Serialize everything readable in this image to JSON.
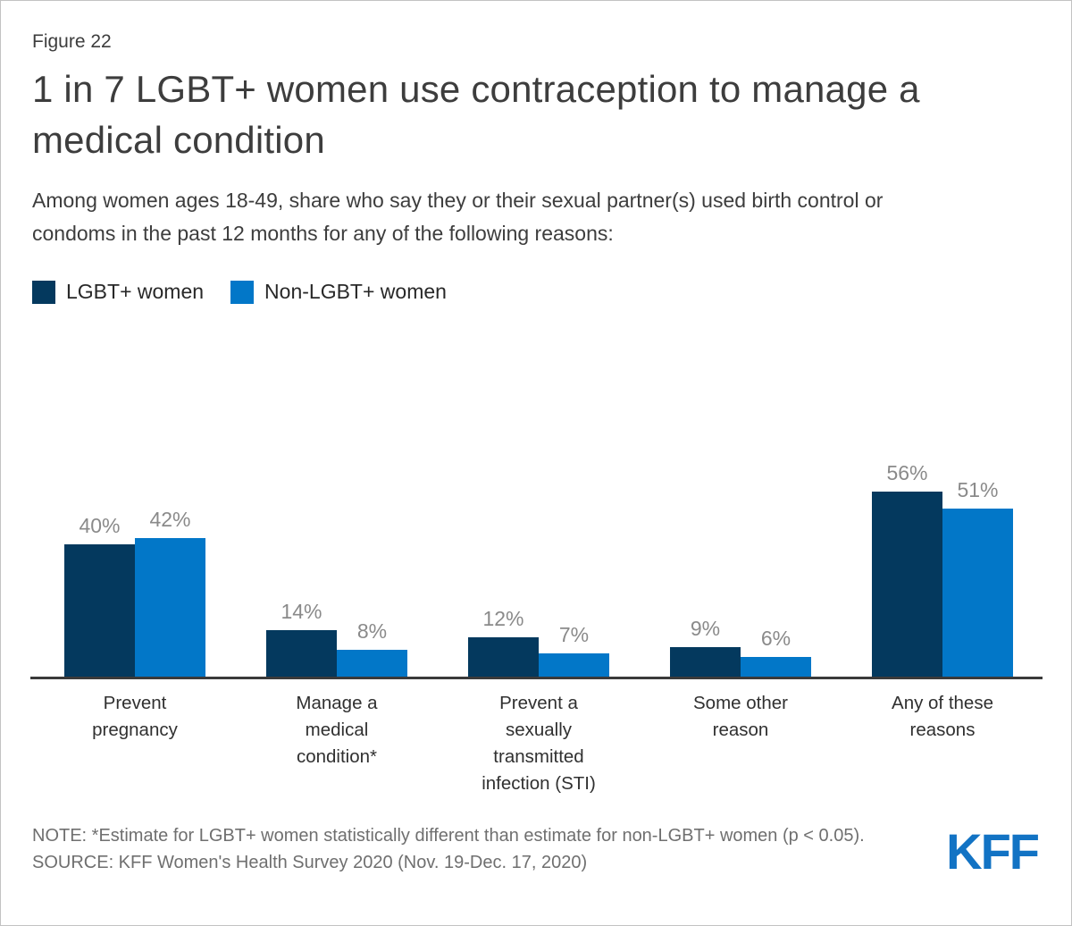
{
  "figure_label": "Figure 22",
  "title": "1 in 7 LGBT+ women use contraception to manage a medical condition",
  "subtitle": "Among women ages 18-49, share who say they or their sexual partner(s) used birth control or condoms in the past 12 months for any of the following reasons:",
  "legend": [
    {
      "label": "LGBT+ women",
      "color": "#04395E"
    },
    {
      "label": "Non-LGBT+ women",
      "color": "#0277C8"
    }
  ],
  "chart_data": {
    "type": "bar",
    "categories": [
      "Prevent pregnancy",
      "Manage a medical condition*",
      "Prevent a sexually transmitted infection (STI)",
      "Some other reason",
      "Any of these reasons"
    ],
    "series": [
      {
        "name": "LGBT+ women",
        "color": "#04395E",
        "values": [
          40,
          14,
          12,
          9,
          56
        ]
      },
      {
        "name": "Non-LGBT+ women",
        "color": "#0277C8",
        "values": [
          42,
          8,
          7,
          6,
          51
        ]
      }
    ],
    "value_suffix": "%",
    "value_labels": true,
    "ylim": [
      0,
      60
    ],
    "grid": false,
    "axis": "x-baseline-only",
    "legend_position": "top-left",
    "value_label_color": "#8a8a8a"
  },
  "note": "NOTE: *Estimate for LGBT+ women statistically different than estimate for non-LGBT+ women (p < 0.05).",
  "source": "SOURCE: KFF Women's Health Survey 2020 (Nov. 19-Dec. 17, 2020)",
  "logo": {
    "text": "KFF",
    "color": "#1273C4"
  }
}
